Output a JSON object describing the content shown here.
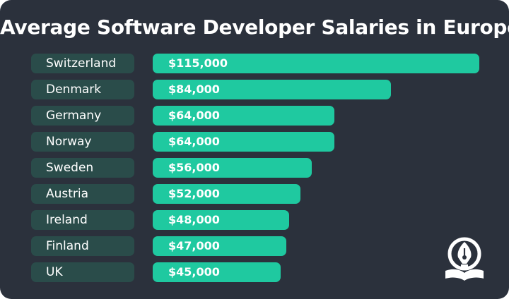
{
  "chart_data": {
    "type": "bar",
    "orientation": "horizontal",
    "title": "Average Software Developer Salaries in Europe",
    "categories": [
      "Switzerland",
      "Denmark",
      "Germany",
      "Norway",
      "Sweden",
      "Austria",
      "Ireland",
      "Finland",
      "UK"
    ],
    "values": [
      115000,
      84000,
      64000,
      64000,
      56000,
      52000,
      48000,
      47000,
      45000
    ],
    "value_labels": [
      "$115,000",
      "$84,000",
      "$64,000",
      "$64,000",
      "$56,000",
      "$52,000",
      "$48,000",
      "$47,000",
      "$45,000"
    ],
    "xlim": [
      0,
      115000
    ],
    "xlabel": "",
    "ylabel": "",
    "grid": false,
    "legend": "none"
  },
  "colors": {
    "background": "#2b313c",
    "bar": "#1fc9a0",
    "label_box": "#2a4c4a",
    "text": "#ffffff"
  },
  "logo": {
    "icon": "pen-nib-book-icon"
  }
}
